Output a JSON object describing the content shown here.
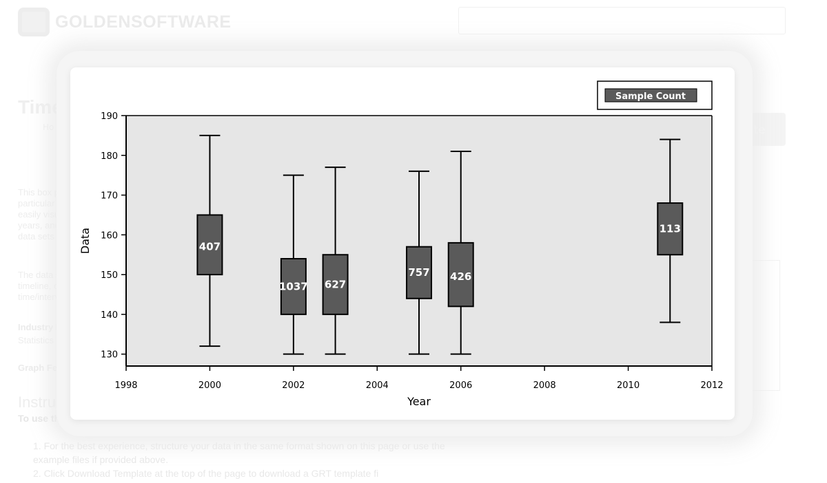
{
  "background_page": {
    "logo_text": "GOLDENSOFTWARE",
    "title": "Time S",
    "crumb": "Ho",
    "button_label": "plate",
    "paragraph_1": [
      "This box pl",
      "particular lo",
      "easily visua",
      "years, and",
      "data sets to"
    ],
    "paragraph_2": [
      "The data s",
      "timeline, or",
      "time/interv"
    ],
    "industry_label": "Industry Fo",
    "industry_value": "Statistics",
    "graph_features_label": "Graph Fea",
    "instructions_title": "Instructi",
    "instructions_sub": "To use this template in Grapher:",
    "instructions_list": [
      "1. For the best experience, structure your data in the same format shown on this page or use the example files if provided above.",
      "2. Click Download Template at the top of the page to download a GRT template fi"
    ]
  },
  "chart_data": {
    "type": "box",
    "title": "",
    "xlabel": "Year",
    "ylabel": "Data",
    "xlim": [
      1998,
      2012
    ],
    "ylim": [
      127,
      190
    ],
    "x_ticks": [
      1998,
      2000,
      2002,
      2004,
      2006,
      2008,
      2010,
      2012
    ],
    "y_ticks": [
      130,
      140,
      150,
      160,
      170,
      180,
      190
    ],
    "grid": false,
    "legend": {
      "entry": "Sample Count",
      "placement": "top-right"
    },
    "colors": {
      "box_fill": "#5a5a5a",
      "plot_bg": "#e6e6e6",
      "label": "#ffffff"
    },
    "boxes": [
      {
        "x": 2000,
        "min": 132,
        "q1": 150,
        "q3": 165,
        "max": 185,
        "label": "407",
        "label_y": 157
      },
      {
        "x": 2002,
        "min": 130,
        "q1": 140,
        "q3": 154,
        "max": 175,
        "label": "1037",
        "label_y": 147
      },
      {
        "x": 2003,
        "min": 130,
        "q1": 140,
        "q3": 155,
        "max": 177,
        "label": "627",
        "label_y": 147.5
      },
      {
        "x": 2005,
        "min": 130,
        "q1": 144,
        "q3": 157,
        "max": 176,
        "label": "757",
        "label_y": 150.5
      },
      {
        "x": 2006,
        "min": 130,
        "q1": 142,
        "q3": 158,
        "max": 181,
        "label": "426",
        "label_y": 149.5
      },
      {
        "x": 2011,
        "min": 138,
        "q1": 155,
        "q3": 168,
        "max": 184,
        "label": "113",
        "label_y": 161.5
      }
    ]
  }
}
